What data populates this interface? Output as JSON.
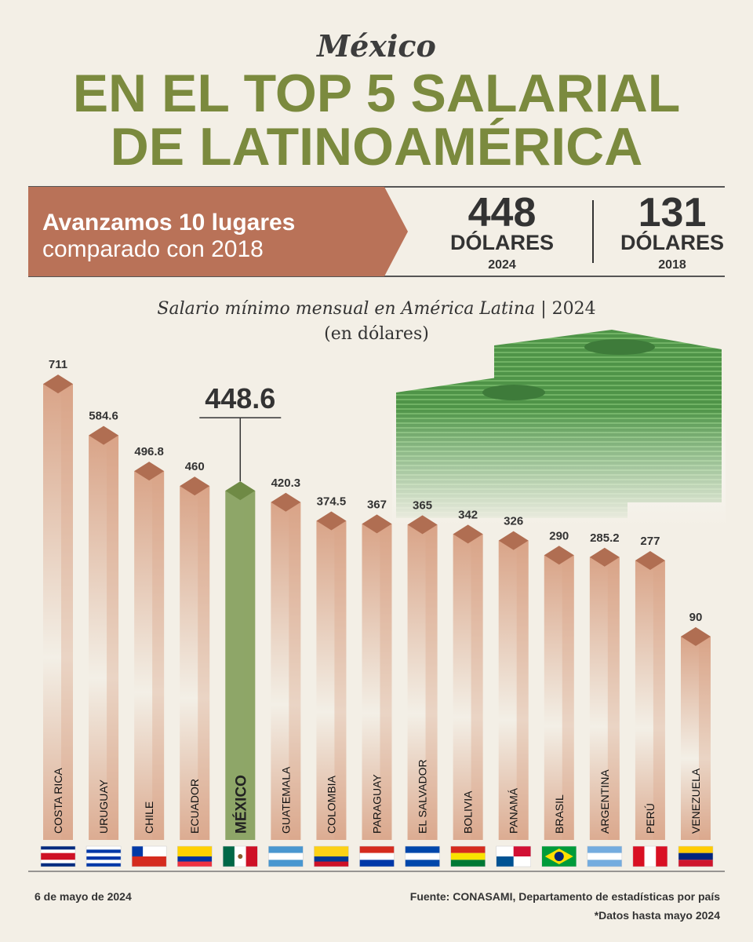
{
  "header": {
    "kicker": "México",
    "title_line1": "EN EL TOP 5 SALARIAL",
    "title_line2": "DE LATINOAMÉRICA",
    "banner_line1": "Avanzamos 10 lugares",
    "banner_line2": "comparado con 2018",
    "stat1": {
      "number": "448",
      "unit": "DÓLARES",
      "year": "2024"
    },
    "stat2": {
      "number": "131",
      "unit": "DÓLARES",
      "year": "2018"
    }
  },
  "chart_data": {
    "type": "bar",
    "title": "Salario mínimo mensual en América Latina",
    "title_suffix": "| 2024",
    "subtitle": "(en dólares)",
    "categories": [
      "COSTA RICA",
      "URUGUAY",
      "CHILE",
      "ECUADOR",
      "MÉXICO",
      "GUATEMALA",
      "COLOMBIA",
      "PARAGUAY",
      "EL SALVADOR",
      "BOLIVIA",
      "PANAMÁ",
      "BRASIL",
      "ARGENTINA",
      "PERÚ",
      "VENEZUELA"
    ],
    "values": [
      711,
      584.6,
      496.8,
      460,
      448.6,
      420.3,
      374.5,
      367,
      365,
      342,
      326,
      290,
      285.2,
      277,
      90
    ],
    "colors": [
      "#d9a488",
      "#d9a488",
      "#d9a488",
      "#d9a488",
      "#8ea668",
      "#d9a488",
      "#d9a488",
      "#d9a488",
      "#d9a488",
      "#d9a488",
      "#d9a488",
      "#d9a488",
      "#d9a488",
      "#d9a488",
      "#d9a488"
    ],
    "ylim": [
      -410,
      800
    ]
  },
  "footer": {
    "date": "6 de mayo de 2024",
    "source": "Fuente: CONASAMI, Departamento de estadísticas por país",
    "note": "*Datos hasta mayo 2024"
  }
}
